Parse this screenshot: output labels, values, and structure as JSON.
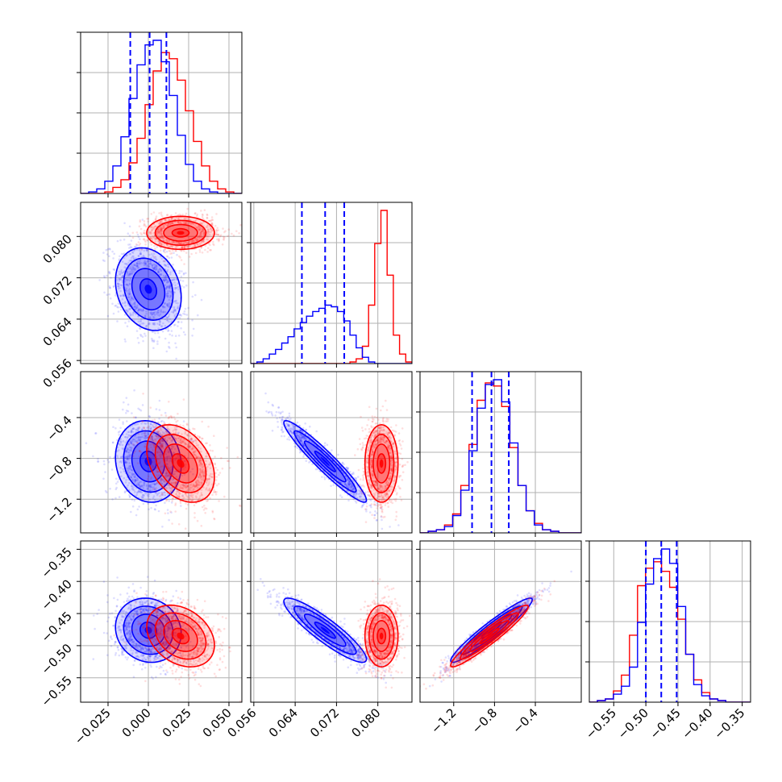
{
  "chart_data": {
    "type": "corner",
    "title": "",
    "grid": true,
    "colors": {
      "blue": "#0000ff",
      "red": "#ff0000",
      "grid": "#b0b0b0"
    },
    "parameters": [
      {
        "range": [
          -0.042,
          0.058
        ],
        "ticks": [
          -0.025,
          0.0,
          0.025,
          0.05
        ],
        "tick_labels": [
          "−0.025",
          "0.000",
          "0.025",
          "0.050"
        ]
      },
      {
        "range": [
          0.0554,
          0.0866
        ],
        "ticks": [
          0.056,
          0.064,
          0.072,
          0.08
        ],
        "tick_labels": [
          "0.056",
          "0.064",
          "0.072",
          "0.080"
        ]
      },
      {
        "range": [
          -1.53,
          0.05
        ],
        "ticks": [
          -1.2,
          -0.8,
          -0.4
        ],
        "tick_labels": [
          "−1.2",
          "−0.8",
          "−0.4"
        ]
      },
      {
        "range": [
          -0.588,
          -0.337
        ],
        "ticks": [
          -0.55,
          -0.5,
          -0.45,
          -0.4,
          -0.35
        ],
        "tick_labels": [
          "−0.55",
          "−0.50",
          "−0.45",
          "−0.40",
          "−0.35"
        ]
      }
    ],
    "series": [
      {
        "color": "#0000ff",
        "means": [
          0.0,
          0.0698,
          -0.83,
          -0.476
        ],
        "sds": [
          0.0102,
          0.004,
          0.2,
          0.025
        ],
        "quantiles": [
          [
            -0.0112,
            0.0008,
            0.0112
          ],
          [
            0.0653,
            0.0698,
            0.0735
          ],
          [
            -1.02,
            -0.83,
            -0.66
          ],
          [
            -0.5,
            -0.476,
            -0.452
          ]
        ],
        "correlations": {
          "0-1": -0.2,
          "0-2": -0.1,
          "0-3": -0.1,
          "1-2": -0.95,
          "1-3": -0.9,
          "2-3": 0.95
        }
      },
      {
        "color": "#ff0000",
        "means": [
          0.02,
          0.0807,
          -0.85,
          -0.485
        ],
        "sds": [
          0.0105,
          0.0016,
          0.19,
          0.024
        ],
        "correlations": {
          "0-1": 0.0,
          "0-2": -0.35,
          "0-3": -0.3,
          "1-2": 0.0,
          "1-3": 0.0,
          "2-3": 0.95
        }
      }
    ],
    "histograms": [
      {
        "bin_edges": [
          -0.042,
          -0.037,
          -0.032,
          -0.027,
          -0.022,
          -0.017,
          -0.012,
          -0.007,
          -0.002,
          0.003,
          0.008,
          0.013,
          0.018,
          0.023,
          0.028,
          0.033,
          0.038,
          0.043,
          0.048,
          0.053,
          0.058
        ],
        "blue": [
          0,
          1,
          3,
          8,
          18,
          37,
          62,
          84,
          97,
          100,
          86,
          64,
          38,
          19,
          8,
          3,
          1,
          0,
          0,
          0
        ],
        "red": [
          0,
          0,
          0,
          1,
          4,
          9,
          20,
          36,
          58,
          80,
          92,
          88,
          74,
          54,
          34,
          18,
          8,
          3,
          1,
          0
        ]
      },
      {
        "bin_edges": [
          0.0554,
          0.0566,
          0.0578,
          0.059,
          0.0602,
          0.0614,
          0.0626,
          0.0638,
          0.065,
          0.0662,
          0.0674,
          0.0686,
          0.0698,
          0.071,
          0.0722,
          0.0734,
          0.0746,
          0.0758,
          0.077,
          0.0782,
          0.0794,
          0.0806,
          0.0818,
          0.083,
          0.0842,
          0.0854,
          0.0866
        ],
        "blue": [
          0,
          1,
          3,
          6,
          9,
          13,
          17,
          22,
          26,
          30,
          33,
          35,
          37,
          36,
          33,
          27,
          18,
          10,
          4,
          1,
          0,
          0,
          0,
          0,
          0,
          0
        ],
        "red": [
          0,
          0,
          0,
          0,
          0,
          0,
          0,
          0,
          0,
          0,
          0,
          0,
          0,
          0,
          0,
          0,
          1,
          3,
          11,
          37,
          76,
          97,
          56,
          18,
          6,
          1
        ]
      },
      {
        "bin_edges": [
          -1.53,
          -1.45,
          -1.37,
          -1.29,
          -1.21,
          -1.13,
          -1.05,
          -0.97,
          -0.89,
          -0.81,
          -0.73,
          -0.65,
          -0.57,
          -0.49,
          -0.41,
          -0.33,
          -0.25,
          -0.17,
          -0.09,
          -0.01,
          0.05
        ],
        "blue": [
          0,
          1,
          2,
          4,
          11,
          27,
          52,
          79,
          94,
          97,
          83,
          57,
          30,
          14,
          5,
          2,
          1,
          0,
          0,
          0
        ],
        "red": [
          0,
          1,
          2,
          5,
          12,
          30,
          56,
          84,
          95,
          93,
          80,
          54,
          30,
          14,
          6,
          2,
          1,
          0,
          0,
          0
        ]
      },
      {
        "bin_edges": [
          -0.588,
          -0.5755,
          -0.563,
          -0.5505,
          -0.538,
          -0.5255,
          -0.513,
          -0.5005,
          -0.488,
          -0.4755,
          -0.463,
          -0.4505,
          -0.438,
          -0.4255,
          -0.413,
          -0.4005,
          -0.388,
          -0.3755,
          -0.363,
          -0.3505,
          -0.338
        ],
        "blue": [
          0,
          1,
          2,
          5,
          10,
          22,
          50,
          74,
          90,
          96,
          87,
          60,
          30,
          11,
          4,
          2,
          1,
          0,
          0,
          0
        ],
        "red": [
          0,
          1,
          2,
          7,
          17,
          42,
          73,
          84,
          88,
          82,
          72,
          52,
          30,
          14,
          6,
          2,
          1,
          0,
          0,
          0
        ]
      }
    ]
  }
}
